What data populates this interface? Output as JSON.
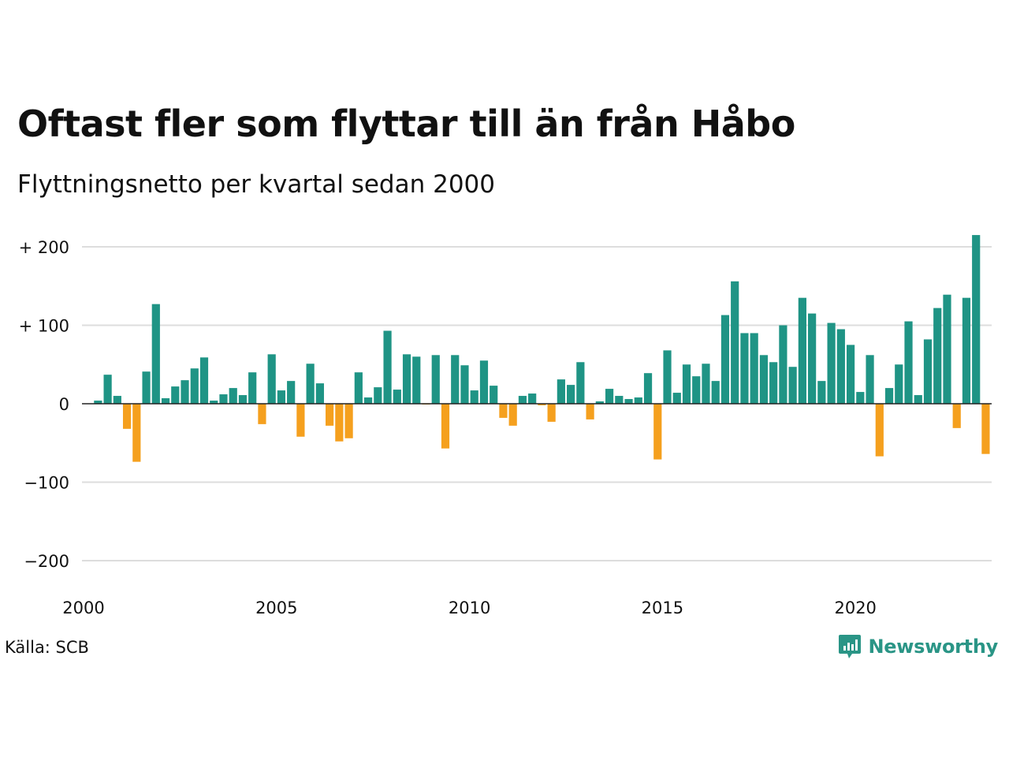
{
  "header": {
    "title": "Oftast fler som flyttar till än från Håbo",
    "subtitle": "Flyttningsnetto per kvartal sedan 2000"
  },
  "footer": {
    "source": "Källa: SCB",
    "brand": "Newsworthy",
    "brand_icon": "chart-speech-bubble-icon"
  },
  "colors": {
    "positive": "#1f9485",
    "negative": "#f5a01e",
    "grid": "#dddddd",
    "zero_line": "#222222",
    "brand": "#2a9586"
  },
  "chart_data": {
    "type": "bar",
    "title": "Oftast fler som flyttar till än från Håbo",
    "subtitle": "Flyttningsnetto per kvartal sedan 2000",
    "x_tick_labels": [
      "2000",
      "2005",
      "2010",
      "2015",
      "2020"
    ],
    "y_ticks": [
      200,
      100,
      0,
      -100,
      -200
    ],
    "y_tick_labels": [
      "+ 200",
      "+ 100",
      "0",
      "−100",
      "−200"
    ],
    "ylim": [
      -200,
      200
    ],
    "grid": true,
    "x_start": "2000 Q1",
    "interval": "quarter",
    "values": [
      0,
      4,
      37,
      10,
      -32,
      -74,
      41,
      127,
      7,
      22,
      30,
      45,
      59,
      4,
      12,
      20,
      11,
      40,
      -26,
      63,
      17,
      29,
      -42,
      51,
      26,
      -28,
      -48,
      -44,
      40,
      8,
      21,
      93,
      18,
      63,
      60,
      -1,
      62,
      -57,
      62,
      49,
      17,
      55,
      23,
      -18,
      -28,
      10,
      13,
      -2,
      -23,
      31,
      24,
      53,
      -20,
      3,
      19,
      10,
      6,
      8,
      39,
      -71,
      68,
      14,
      50,
      35,
      51,
      29,
      113,
      156,
      90,
      90,
      62,
      53,
      100,
      47,
      135,
      115,
      29,
      103,
      95,
      75,
      15,
      62,
      -67,
      20,
      50,
      105,
      11,
      82,
      122,
      139,
      -31,
      135,
      215,
      -64
    ]
  }
}
